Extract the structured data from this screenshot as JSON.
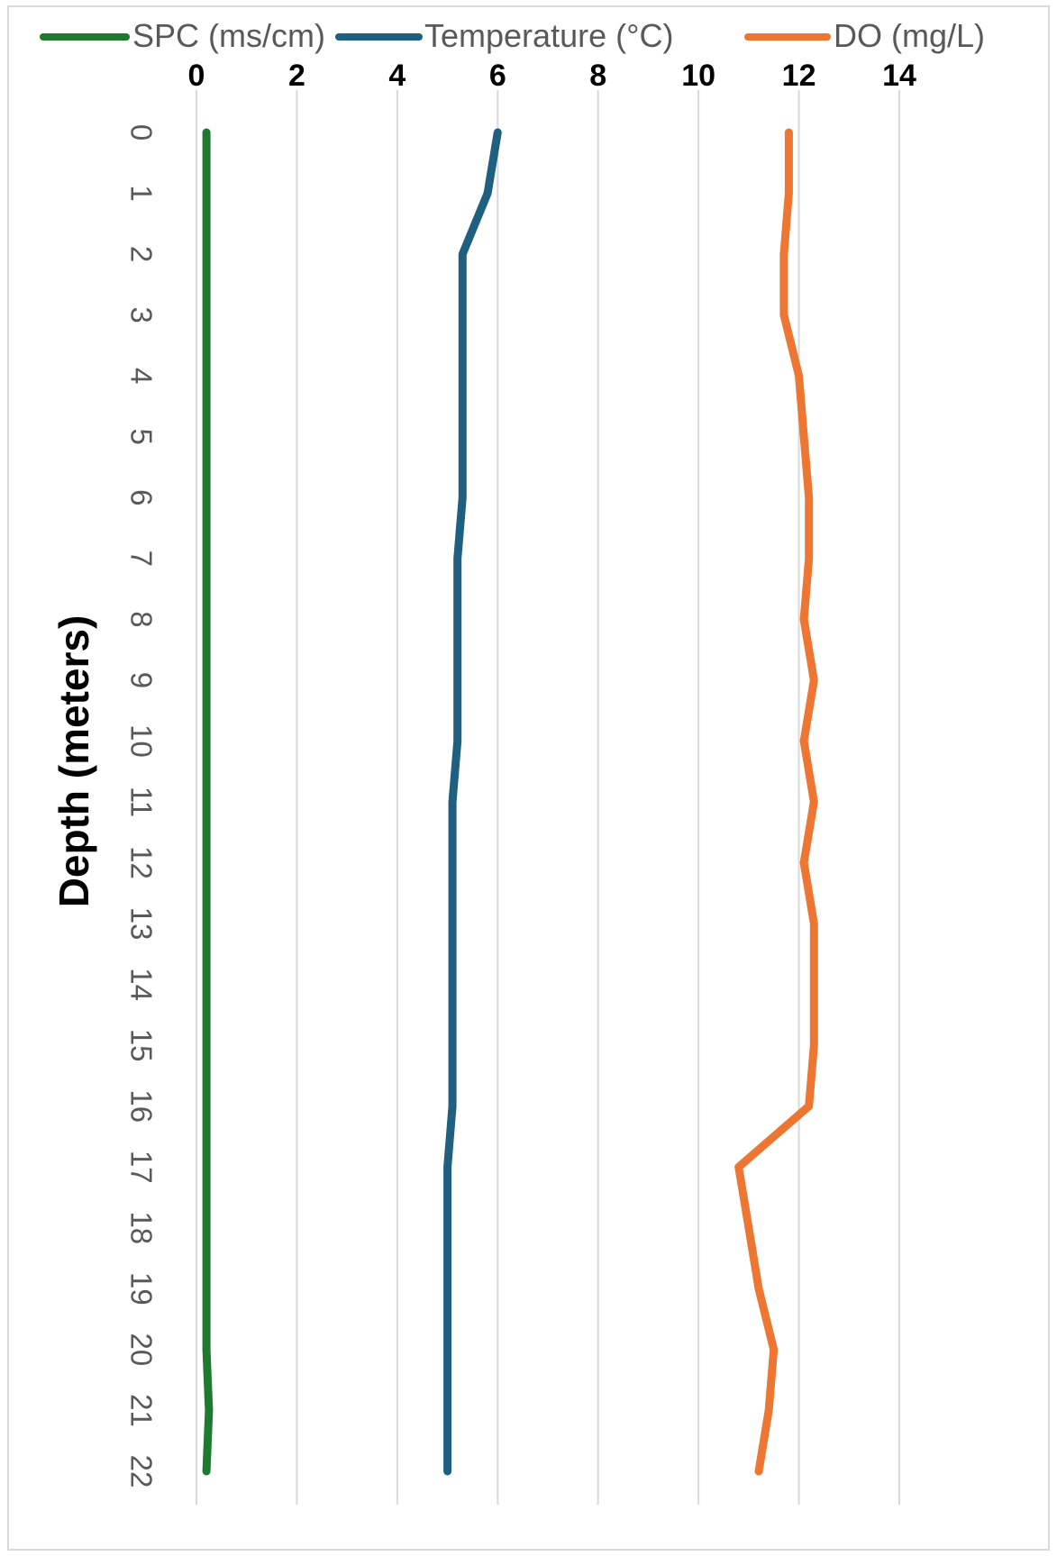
{
  "chart_data": {
    "type": "line",
    "xlabel": "",
    "ylabel": "Depth (meters)",
    "xlim": [
      0,
      14
    ],
    "x_ticks": [
      "0",
      "2",
      "4",
      "6",
      "8",
      "10",
      "12",
      "14"
    ],
    "ylim": [
      0,
      22
    ],
    "y_ticks": [
      "0",
      "1",
      "2",
      "3",
      "4",
      "5",
      "6",
      "7",
      "8",
      "9",
      "10",
      "11",
      "12",
      "13",
      "14",
      "15",
      "16",
      "17",
      "18",
      "19",
      "20",
      "21",
      "22"
    ],
    "grid": true,
    "legend_position": "top",
    "depths": [
      0,
      1,
      2,
      3,
      4,
      5,
      6,
      7,
      8,
      9,
      10,
      11,
      12,
      13,
      14,
      15,
      16,
      17,
      18,
      19,
      20,
      21,
      22
    ],
    "series": [
      {
        "name": "SPC (ms/cm)",
        "color": "#1e7a2e",
        "values": [
          0.2,
          0.2,
          0.2,
          0.2,
          0.2,
          0.2,
          0.2,
          0.2,
          0.2,
          0.2,
          0.2,
          0.2,
          0.2,
          0.2,
          0.2,
          0.2,
          0.2,
          0.2,
          0.2,
          0.2,
          0.2,
          0.25,
          0.2
        ]
      },
      {
        "name": "Temperature (°C)",
        "color": "#1f5f7f",
        "values": [
          6.0,
          5.8,
          5.3,
          5.3,
          5.3,
          5.3,
          5.3,
          5.2,
          5.2,
          5.2,
          5.2,
          5.1,
          5.1,
          5.1,
          5.1,
          5.1,
          5.1,
          5.0,
          5.0,
          5.0,
          5.0,
          5.0,
          5.0
        ]
      },
      {
        "name": "DO (mg/L)",
        "color": "#ee7633",
        "values": [
          11.8,
          11.8,
          11.7,
          11.7,
          12.0,
          12.1,
          12.2,
          12.2,
          12.1,
          12.3,
          12.1,
          12.3,
          12.1,
          12.3,
          12.3,
          12.3,
          12.2,
          10.8,
          11.0,
          11.2,
          11.5,
          11.4,
          11.2
        ]
      }
    ]
  }
}
